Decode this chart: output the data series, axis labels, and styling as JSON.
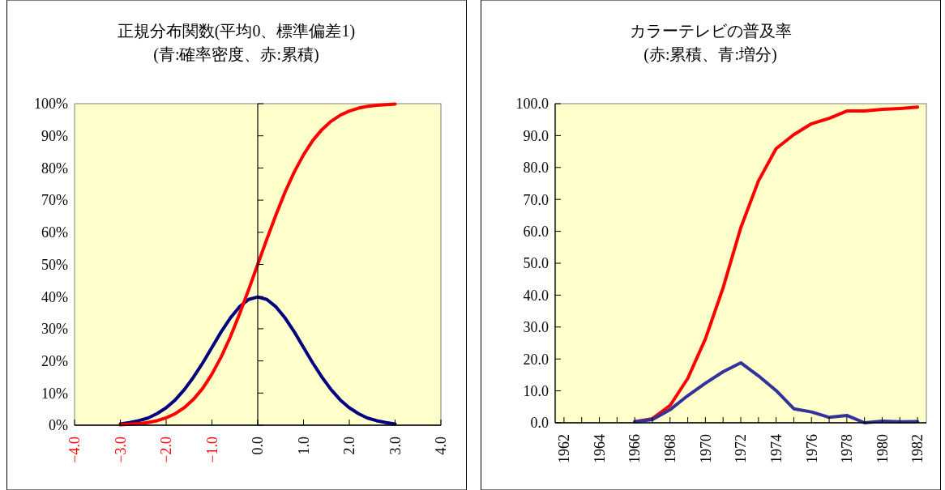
{
  "chart_data": [
    {
      "type": "line",
      "title": "正規分布関数(平均0、標準偏差1)",
      "subtitle": "(青:確率密度、赤:累積)",
      "x": [
        -3,
        -2.8,
        -2.6,
        -2.4,
        -2.2,
        -2,
        -1.8,
        -1.6,
        -1.4,
        -1.2,
        -1,
        -0.8,
        -0.6,
        -0.4,
        -0.2,
        0,
        0.2,
        0.4,
        0.6,
        0.8,
        1,
        1.2,
        1.4,
        1.6,
        1.8,
        2,
        2.2,
        2.4,
        2.6,
        2.8,
        3
      ],
      "series": [
        {
          "color": "#000080",
          "values": [
            0.4,
            0.8,
            1.4,
            2.2,
            3.6,
            5.4,
            7.9,
            11.1,
            15,
            19.4,
            24.2,
            29,
            33.3,
            36.8,
            39.1,
            39.9,
            39.1,
            36.8,
            33.3,
            29,
            24.2,
            19.4,
            15,
            11.1,
            7.9,
            5.4,
            3.6,
            2.2,
            1.4,
            0.8,
            0.4
          ]
        },
        {
          "color": "#ff0000",
          "values": [
            0.1,
            0.3,
            0.5,
            0.8,
            1.4,
            2.3,
            3.6,
            5.5,
            8.1,
            11.5,
            15.9,
            21.2,
            27.4,
            34.5,
            42.1,
            50,
            57.9,
            65.5,
            72.6,
            78.8,
            84.1,
            88.5,
            91.9,
            94.5,
            96.4,
            97.7,
            98.6,
            99.2,
            99.5,
            99.7,
            99.9
          ]
        }
      ],
      "xlim": [
        -4,
        4
      ],
      "xticks": [
        {
          "value": -4,
          "label": "−4.0"
        },
        {
          "value": -3,
          "label": "−3.0"
        },
        {
          "value": -2,
          "label": "−2.0"
        },
        {
          "value": -1,
          "label": "−1.0"
        },
        {
          "value": 0,
          "label": "0.0"
        },
        {
          "value": 1,
          "label": "1.0"
        },
        {
          "value": 2,
          "label": "2.0"
        },
        {
          "value": 3,
          "label": "3.0"
        },
        {
          "value": 4,
          "label": "4.0"
        }
      ],
      "ylim": [
        0,
        100
      ],
      "yticks": [
        {
          "value": 0,
          "label": "0%"
        },
        {
          "value": 10,
          "label": "10%"
        },
        {
          "value": 20,
          "label": "20%"
        },
        {
          "value": 30,
          "label": "30%"
        },
        {
          "value": 40,
          "label": "40%"
        },
        {
          "value": 50,
          "label": "50%"
        },
        {
          "value": 60,
          "label": "60%"
        },
        {
          "value": 70,
          "label": "70%"
        },
        {
          "value": 80,
          "label": "80%"
        },
        {
          "value": 90,
          "label": "90%"
        },
        {
          "value": 100,
          "label": "100%"
        }
      ],
      "marker": "none",
      "line_style": "solid"
    },
    {
      "type": "line",
      "title": "カラーテレビの普及率",
      "subtitle": "(赤:累積、青:増分)",
      "x": [
        1966,
        1967,
        1968,
        1969,
        1970,
        1971,
        1972,
        1973,
        1974,
        1975,
        1976,
        1977,
        1978,
        1979,
        1980,
        1981,
        1982
      ],
      "series": [
        {
          "color": "#ff0000",
          "values": [
            0.3,
            1.3,
            5.4,
            13.9,
            26.3,
            42.3,
            61.1,
            75.8,
            85.9,
            90.3,
            93.7,
            95.4,
            97.7,
            97.7,
            98.2,
            98.5,
            98.9
          ]
        },
        {
          "color": "#333399",
          "values": [
            0.3,
            1,
            4.1,
            8.5,
            12.4,
            16,
            18.8,
            14.7,
            10.1,
            4.4,
            3.4,
            1.7,
            2.3,
            0,
            0.5,
            0.3,
            0.4
          ]
        }
      ],
      "xlim": [
        1961.5,
        1982.5
      ],
      "xticks": [
        1962,
        {
          "value": 1963,
          "label": null
        },
        1964,
        {
          "value": 1965,
          "label": null
        },
        1966,
        {
          "value": 1967,
          "label": null
        },
        1968,
        {
          "value": 1969,
          "label": null
        },
        1970,
        {
          "value": 1971,
          "label": null
        },
        1972,
        {
          "value": 1973,
          "label": null
        },
        1974,
        {
          "value": 1975,
          "label": null
        },
        1976,
        {
          "value": 1977,
          "label": null
        },
        1978,
        {
          "value": 1979,
          "label": null
        },
        1980,
        {
          "value": 1981,
          "label": null
        },
        1982
      ],
      "ylim": [
        0,
        100
      ],
      "yticks": [
        {
          "value": 0,
          "label": "0.0"
        },
        {
          "value": 10,
          "label": "10.0"
        },
        {
          "value": 20,
          "label": "20.0"
        },
        {
          "value": 30,
          "label": "30.0"
        },
        {
          "value": 40,
          "label": "40.0"
        },
        {
          "value": 50,
          "label": "50.0"
        },
        {
          "value": 60,
          "label": "60.0"
        },
        {
          "value": 70,
          "label": "70.0"
        },
        {
          "value": 80,
          "label": "80.0"
        },
        {
          "value": 90,
          "label": "90.0"
        },
        {
          "value": 100,
          "label": "100.0"
        }
      ],
      "marker": "none",
      "line_style": "solid"
    }
  ]
}
